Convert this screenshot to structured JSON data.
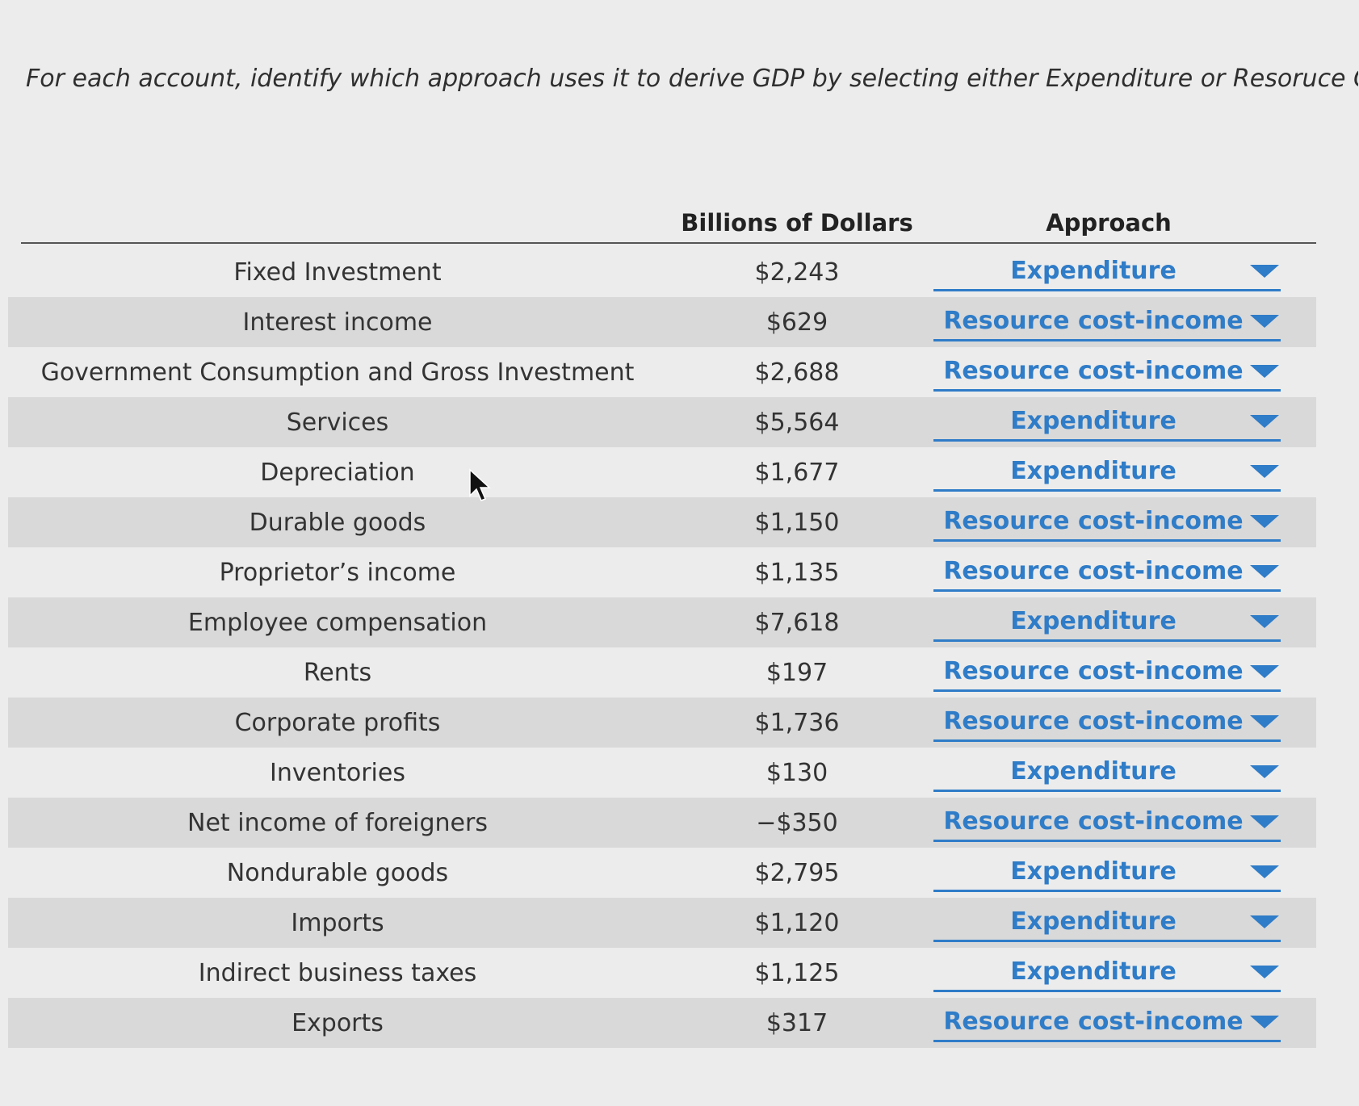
{
  "instruction": "For each account, identify which approach uses it to derive GDP by selecting either Expenditure or Resoruce Cost-",
  "table": {
    "headers": {
      "account": "",
      "amount": "Billions of Dollars",
      "approach": "Approach"
    },
    "rows": [
      {
        "account": "Fixed Investment",
        "amount": "$2,243",
        "approach": "Expenditure"
      },
      {
        "account": "Interest income",
        "amount": "$629",
        "approach": "Resource cost-income"
      },
      {
        "account": "Government Consumption and Gross Investment",
        "amount": "$2,688",
        "approach": "Resource cost-income"
      },
      {
        "account": "Services",
        "amount": "$5,564",
        "approach": "Expenditure"
      },
      {
        "account": "Depreciation",
        "amount": "$1,677",
        "approach": "Expenditure"
      },
      {
        "account": "Durable goods",
        "amount": "$1,150",
        "approach": "Resource cost-income"
      },
      {
        "account": "Proprietor’s income",
        "amount": "$1,135",
        "approach": "Resource cost-income"
      },
      {
        "account": "Employee compensation",
        "amount": "$7,618",
        "approach": "Expenditure"
      },
      {
        "account": "Rents",
        "amount": "$197",
        "approach": "Resource cost-income"
      },
      {
        "account": "Corporate profits",
        "amount": "$1,736",
        "approach": "Resource cost-income"
      },
      {
        "account": "Inventories",
        "amount": "$130",
        "approach": "Expenditure"
      },
      {
        "account": "Net income of foreigners",
        "amount": "−$350",
        "approach": "Resource cost-income"
      },
      {
        "account": "Nondurable goods",
        "amount": "$2,795",
        "approach": "Expenditure"
      },
      {
        "account": "Imports",
        "amount": "$1,120",
        "approach": "Expenditure"
      },
      {
        "account": "Indirect business taxes",
        "amount": "$1,125",
        "approach": "Expenditure"
      },
      {
        "account": "Exports",
        "amount": "$317",
        "approach": "Resource cost-income"
      }
    ]
  },
  "colors": {
    "accent": "#2f7cc8",
    "shaded_row": "#d9d9d9",
    "background": "#ececec"
  },
  "icons": {
    "dropdown": "chevron-down-icon",
    "pointer": "mouse-cursor-icon"
  }
}
